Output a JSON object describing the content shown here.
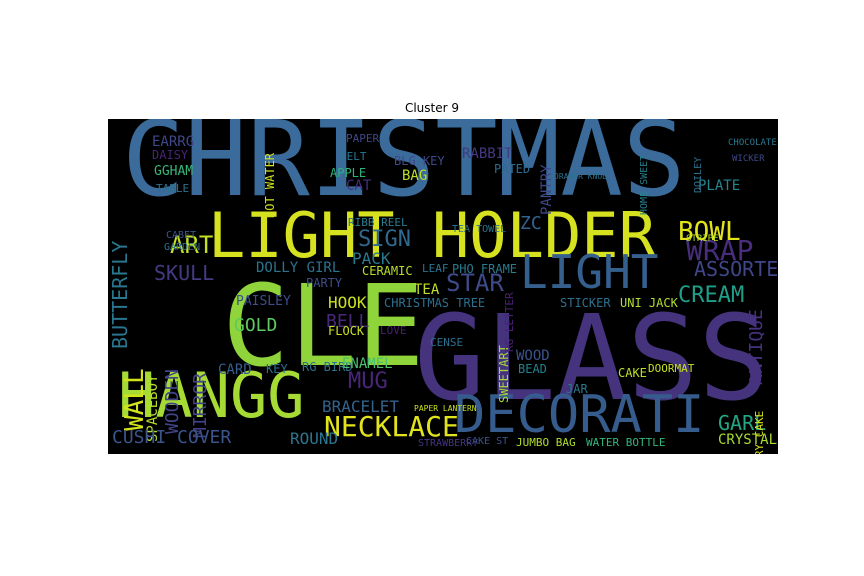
{
  "figure": {
    "title": "Cluster 9"
  },
  "wordcloud": {
    "background": "#000000",
    "words": [
      {
        "text": "CHRISTMAS",
        "color": "#3b6b9a"
      },
      {
        "text": "LIGHT HOLDER",
        "color": "#d6e21f"
      },
      {
        "text": "GLASS",
        "color": "#46337e"
      },
      {
        "text": "CLE",
        "color": "#8ed43a"
      },
      {
        "text": "HANGG",
        "color": "#a6db35"
      },
      {
        "text": "DECORATI",
        "color": "#365c8d"
      },
      {
        "text": "LIGHT",
        "color": "#355f8d"
      },
      {
        "text": "NECKLACE",
        "color": "#e1e31d"
      },
      {
        "text": "BOWL",
        "color": "#e3e418"
      },
      {
        "text": "WRAP",
        "color": "#472d7b"
      },
      {
        "text": "ASSORTED",
        "color": "#3f4788"
      },
      {
        "text": "CREAM",
        "color": "#1f9e89"
      },
      {
        "text": "STAR",
        "color": "#3e4a89"
      },
      {
        "text": "SIGN",
        "color": "#31688e"
      },
      {
        "text": "ZC",
        "color": "#33638d"
      },
      {
        "text": "PACK",
        "color": "#2a788e"
      },
      {
        "text": "CERAMIC",
        "color": "#b8de29"
      },
      {
        "text": "SKULL",
        "color": "#443a83"
      },
      {
        "text": "ART",
        "color": "#c2df23"
      },
      {
        "text": "WALL",
        "color": "#d2e21b"
      },
      {
        "text": "WOODEN",
        "color": "#414487"
      },
      {
        "text": "MIRROR",
        "color": "#424086"
      },
      {
        "text": "SPACEBOY",
        "color": "#b5de2b"
      },
      {
        "text": "BUTTERFLY",
        "color": "#2a768e"
      },
      {
        "text": "GOLD",
        "color": "#5ec962"
      },
      {
        "text": "PAISLEY",
        "color": "#3d4e8a"
      },
      {
        "text": "HOOK",
        "color": "#c8e020"
      },
      {
        "text": "BELL",
        "color": "#482878"
      },
      {
        "text": "PARTY",
        "color": "#3d4d8a"
      },
      {
        "text": "CARD",
        "color": "#365d8d"
      },
      {
        "text": "KEY",
        "color": "#2f6c8e"
      },
      {
        "text": "RG BIRD",
        "color": "#2c728e"
      },
      {
        "text": "ENAMEL",
        "color": "#4ac16d"
      },
      {
        "text": "MUG",
        "color": "#482576"
      },
      {
        "text": "BRACELET",
        "color": "#33638d"
      },
      {
        "text": "LOVE",
        "color": "#481f70"
      },
      {
        "text": "CENSE",
        "color": "#2e6e8e"
      },
      {
        "text": "BEAD",
        "color": "#27808e"
      },
      {
        "text": "WOOD",
        "color": "#3b528b"
      },
      {
        "text": "TEA",
        "color": "#c0df25"
      },
      {
        "text": "CHRISTMAS TREE",
        "color": "#2d708e"
      },
      {
        "text": "GARL",
        "color": "#22a884"
      },
      {
        "text": "CRYSTAL",
        "color": "#a8db34"
      },
      {
        "text": "ANTIQUE",
        "color": "#46327e"
      },
      {
        "text": "FAIRY CAKE",
        "color": "#d5e21a"
      },
      {
        "text": "CAKE",
        "color": "#bade28"
      },
      {
        "text": "JAR",
        "color": "#2a778e"
      },
      {
        "text": "DOORMAT",
        "color": "#c5e021"
      },
      {
        "text": "CUSHI COVER",
        "color": "#3a548c"
      },
      {
        "text": "ROUND",
        "color": "#2b758e"
      },
      {
        "text": "JUMBO BAG",
        "color": "#b0dd2f"
      },
      {
        "text": "WATER BOTTLE",
        "color": "#32b67a"
      },
      {
        "text": "STRAWBERRY",
        "color": "#453581"
      },
      {
        "text": "CAKE ST",
        "color": "#3b528b"
      },
      {
        "text": "SWEETART",
        "color": "#a2da37"
      },
      {
        "text": "RG LETTER",
        "color": "#482173"
      },
      {
        "text": "FLOCK",
        "color": "#cae11f"
      },
      {
        "text": "DOLLY GIRL",
        "color": "#2c738e"
      },
      {
        "text": "PHO FRAME",
        "color": "#297b8e"
      },
      {
        "text": "LEAF",
        "color": "#2b748e"
      },
      {
        "text": "STICKER",
        "color": "#2c718e"
      },
      {
        "text": "UNI JACK",
        "color": "#b2dd2d"
      },
      {
        "text": "PLATE",
        "color": "#24868e"
      },
      {
        "text": "PANTRY",
        "color": "#3f4889"
      },
      {
        "text": "BAG",
        "color": "#bddf26"
      },
      {
        "text": "RABBIT",
        "color": "#453882"
      },
      {
        "text": "PATED",
        "color": "#2f6b8e"
      },
      {
        "text": "APPLE",
        "color": "#2db27d"
      },
      {
        "text": "CAT",
        "color": "#472e7c"
      },
      {
        "text": "BLG KEY",
        "color": "#3e4989"
      },
      {
        "text": "PAPER",
        "color": "#404688"
      },
      {
        "text": "FELT",
        "color": "#2a788e"
      },
      {
        "text": "HOT WATER",
        "color": "#cde11d"
      },
      {
        "text": "RIBB REEL",
        "color": "#287d8e"
      },
      {
        "text": "EARRG",
        "color": "#3f4889"
      },
      {
        "text": "DAISY",
        "color": "#482475"
      },
      {
        "text": "GGHAM",
        "color": "#37b878"
      },
      {
        "text": "TABLE",
        "color": "#2e6f8e"
      },
      {
        "text": "CABET",
        "color": "#3a548c"
      },
      {
        "text": "GARDEN",
        "color": "#2c728e"
      },
      {
        "text": "TEA TOWEL",
        "color": "#2a768e"
      },
      {
        "text": "DOILEY",
        "color": "#2d708e"
      },
      {
        "text": "HOME SWEET",
        "color": "#277f8e"
      },
      {
        "text": "DRAWER KNOB",
        "color": "#2c718e"
      },
      {
        "text": "STRIPE",
        "color": "#b5de2b"
      },
      {
        "text": "CHOCOLATE",
        "color": "#2a788e"
      },
      {
        "text": "WICKER",
        "color": "#3e4989"
      },
      {
        "text": "PAPER LANTERN",
        "color": "#c8e020"
      }
    ]
  }
}
